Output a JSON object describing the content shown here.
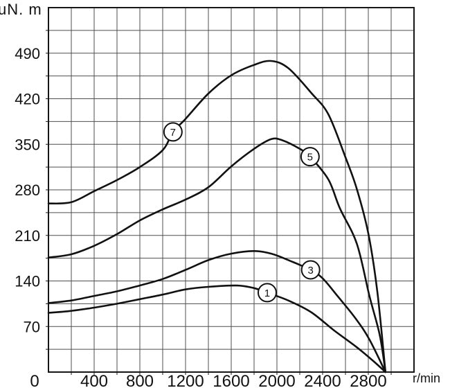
{
  "chart_data": {
    "type": "line",
    "title": "",
    "ylabel": "uN. m",
    "xlabel": "r/min",
    "xlim": [
      0,
      3200
    ],
    "ylim": [
      0,
      560
    ],
    "x_ticks": [
      400,
      800,
      1200,
      1600,
      2000,
      2400,
      2800
    ],
    "y_ticks": [
      70,
      140,
      210,
      280,
      350,
      420,
      490
    ],
    "origin_label": "0",
    "x_minor_step": 200,
    "y_minor_step": 35,
    "grid": true,
    "legend_position": "on-curve-circled-markers",
    "colors": {
      "curve": "#111111",
      "grid": "#4d4d4d",
      "frame": "#161616",
      "background": "#ffffff",
      "text": "#111111",
      "marker_fill": "#ffffff"
    },
    "series": [
      {
        "name": "7",
        "label_at": [
          1090,
          369
        ],
        "points": [
          [
            0,
            259
          ],
          [
            200,
            261
          ],
          [
            400,
            278
          ],
          [
            600,
            295
          ],
          [
            800,
            315
          ],
          [
            1000,
            341
          ],
          [
            1090,
            369
          ],
          [
            1200,
            389
          ],
          [
            1400,
            428
          ],
          [
            1600,
            456
          ],
          [
            1800,
            472
          ],
          [
            1950,
            478
          ],
          [
            2100,
            467
          ],
          [
            2300,
            429
          ],
          [
            2450,
            396
          ],
          [
            2600,
            330
          ],
          [
            2700,
            281
          ],
          [
            2800,
            213
          ],
          [
            2880,
            122
          ],
          [
            2950,
            0
          ]
        ]
      },
      {
        "name": "5",
        "label_at": [
          2290,
          331
        ],
        "points": [
          [
            0,
            176
          ],
          [
            200,
            181
          ],
          [
            400,
            194
          ],
          [
            600,
            212
          ],
          [
            800,
            233
          ],
          [
            1000,
            250
          ],
          [
            1200,
            265
          ],
          [
            1400,
            284
          ],
          [
            1600,
            316
          ],
          [
            1800,
            343
          ],
          [
            1950,
            358
          ],
          [
            2050,
            356
          ],
          [
            2200,
            343
          ],
          [
            2290,
            331
          ],
          [
            2450,
            296
          ],
          [
            2550,
            252
          ],
          [
            2700,
            197
          ],
          [
            2810,
            117
          ],
          [
            2900,
            57
          ],
          [
            2950,
            0
          ]
        ]
      },
      {
        "name": "3",
        "label_at": [
          2295,
          157
        ],
        "points": [
          [
            0,
            106
          ],
          [
            200,
            110
          ],
          [
            400,
            117
          ],
          [
            600,
            124
          ],
          [
            800,
            133
          ],
          [
            1000,
            143
          ],
          [
            1200,
            157
          ],
          [
            1400,
            172
          ],
          [
            1600,
            182
          ],
          [
            1800,
            186
          ],
          [
            1950,
            182
          ],
          [
            2100,
            172
          ],
          [
            2295,
            157
          ],
          [
            2400,
            144
          ],
          [
            2530,
            117
          ],
          [
            2690,
            82
          ],
          [
            2810,
            50
          ],
          [
            2950,
            0
          ]
        ]
      },
      {
        "name": "1",
        "label_at": [
          1915,
          122
        ],
        "points": [
          [
            0,
            91
          ],
          [
            200,
            94
          ],
          [
            400,
            99
          ],
          [
            600,
            105
          ],
          [
            800,
            112
          ],
          [
            1000,
            119
          ],
          [
            1200,
            127
          ],
          [
            1400,
            131
          ],
          [
            1650,
            133
          ],
          [
            1800,
            129
          ],
          [
            1915,
            122
          ],
          [
            2100,
            110
          ],
          [
            2300,
            92
          ],
          [
            2500,
            64
          ],
          [
            2700,
            38
          ],
          [
            2850,
            16
          ],
          [
            2950,
            0
          ]
        ]
      }
    ]
  }
}
